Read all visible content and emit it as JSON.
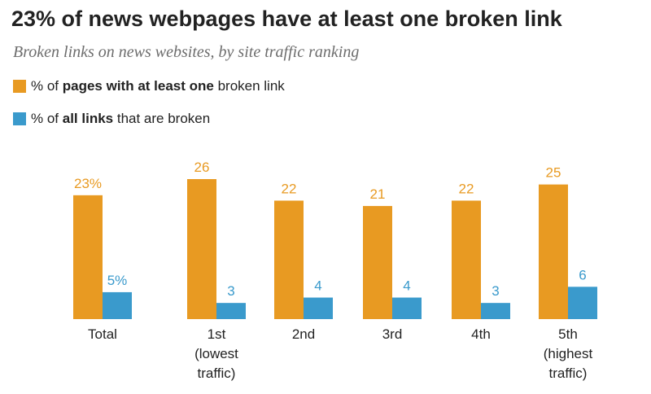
{
  "title": "23% of news webpages have at least one broken link",
  "subtitle": "Broken links on news websites, by site traffic ranking",
  "legend": [
    {
      "series": "pages",
      "pre": "% of ",
      "bold": "pages with at least one",
      "post": " broken link",
      "color": "#E89A22"
    },
    {
      "series": "links",
      "pre": "% of ",
      "bold": "all links",
      "post": " that are broken",
      "color": "#3A9ACC"
    }
  ],
  "chart_data": {
    "type": "bar",
    "categories": [
      [
        "Total"
      ],
      [
        "1st",
        "(lowest",
        "traffic)"
      ],
      [
        "2nd"
      ],
      [
        "3rd"
      ],
      [
        "4th"
      ],
      [
        "5th",
        "(highest",
        "traffic)"
      ]
    ],
    "series": [
      {
        "name": "% of pages with at least one broken link",
        "values": [
          23,
          26,
          22,
          21,
          22,
          25
        ],
        "labels": [
          "23%",
          "26",
          "22",
          "21",
          "22",
          "25"
        ],
        "color": "#E89A22"
      },
      {
        "name": "% of all links that are broken",
        "values": [
          5,
          3,
          4,
          4,
          3,
          6
        ],
        "labels": [
          "5%",
          "3",
          "4",
          "4",
          "3",
          "6"
        ],
        "color": "#3A9ACC"
      }
    ],
    "ylim": [
      0,
      26
    ],
    "grid": false,
    "legend_position": "top-left"
  }
}
